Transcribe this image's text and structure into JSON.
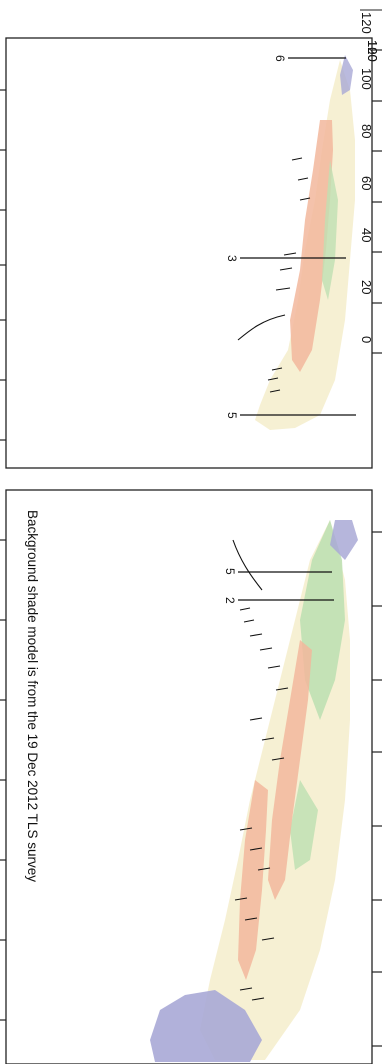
{
  "annotation": "Background shade model is from the 19 Dec 2012 TLS survey",
  "axis": {
    "ticks": [
      "120",
      "100",
      "80",
      "60",
      "40",
      "20",
      "0"
    ]
  },
  "right_panel": {
    "section_labels": [
      "6",
      "3",
      "5"
    ]
  },
  "left_panel": {
    "section_labels": [
      "5",
      "2"
    ]
  },
  "colors": {
    "orange_unit": "#f2b79c",
    "green_unit": "#bfe0b3",
    "blue_unit": "#a9a9d6",
    "cream_unit": "#f4ecc8",
    "frame": "#222222"
  }
}
